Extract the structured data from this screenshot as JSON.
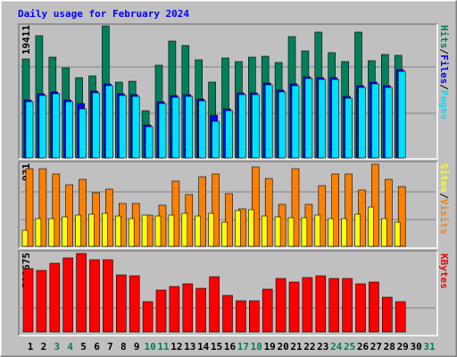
{
  "chart_data": {
    "type": "bar",
    "title": "Daily usage for February 2024",
    "separator": "/",
    "categories": [
      "1",
      "2",
      "3",
      "4",
      "5",
      "6",
      "7",
      "8",
      "9",
      "10",
      "11",
      "12",
      "13",
      "14",
      "15",
      "16",
      "17",
      "18",
      "19",
      "20",
      "21",
      "22",
      "23",
      "24",
      "25",
      "26",
      "27",
      "28",
      "29",
      "30",
      "31"
    ],
    "category_colors": [
      "#000000",
      "#000000",
      "#00805c",
      "#00805c",
      "#000000",
      "#000000",
      "#000000",
      "#000000",
      "#000000",
      "#00805c",
      "#00805c",
      "#000000",
      "#000000",
      "#000000",
      "#000000",
      "#000000",
      "#00805c",
      "#00805c",
      "#000000",
      "#000000",
      "#000000",
      "#000000",
      "#000000",
      "#00805c",
      "#00805c",
      "#000000",
      "#000000",
      "#000000",
      "#000000",
      "#000000",
      "#00805c"
    ],
    "panels": [
      {
        "ylim": [
          0,
          19411
        ],
        "yticks": [
          19411
        ],
        "series": [
          {
            "name": "Hits",
            "color": "#00805c",
            "values": [
              14559,
              17969,
              14821,
              13247,
              11804,
              12067,
              19411,
              11148,
              11280,
              6951,
              13640,
              17182,
              16526,
              14427,
              11148,
              14690,
              14165,
              14821,
              14952,
              14034,
              17837,
              15739,
              18493,
              15476,
              14165,
              18493,
              14296,
              15214,
              15083,
              null,
              null
            ]
          },
          {
            "name": "Files",
            "color": "#0000ff",
            "values": [
              8525,
              9443,
              9705,
              8525,
              8000,
              9836,
              10886,
              9443,
              9312,
              4852,
              8262,
              9181,
              9312,
              8656,
              6296,
              7213,
              9574,
              9574,
              11017,
              9968,
              10886,
              11935,
              11804,
              11804,
              9049,
              10623,
              11148,
              10623,
              12984,
              null,
              null
            ]
          },
          {
            "name": "Pages",
            "color": "#00e0ff",
            "values": [
              8263,
              9181,
              9443,
              8263,
              7214,
              9574,
              10624,
              9181,
              9050,
              4590,
              8000,
              8919,
              9050,
              8394,
              5377,
              6951,
              9312,
              9312,
              10755,
              9706,
              10624,
              11673,
              11542,
              11542,
              8787,
              10361,
              10886,
              10361,
              12722,
              null,
              null
            ]
          }
        ]
      },
      {
        "ylim": [
          0,
          931
        ],
        "yticks": [
          931
        ],
        "series": [
          {
            "name": "Sites",
            "color": "#ffff00",
            "values": [
              182,
              314,
              314,
              334,
              354,
              364,
              374,
              344,
              314,
              354,
              344,
              354,
              374,
              344,
              374,
              273,
              405,
              415,
              344,
              334,
              324,
              324,
              354,
              314,
              314,
              364,
              445,
              314,
              273,
              null,
              null
            ]
          },
          {
            "name": "Visits",
            "color": "#ff8000",
            "values": [
              880,
              880,
              820,
              698,
              759,
              607,
              648,
              486,
              486,
              354,
              466,
              739,
              587,
              789,
              820,
              597,
              425,
              901,
              769,
              476,
              880,
              476,
              688,
              820,
              820,
              638,
              931,
              759,
              678,
              null,
              null
            ]
          }
        ]
      },
      {
        "ylim": [
          0,
          598675
        ],
        "yticks": [
          598675
        ],
        "series": [
          {
            "name": "KBytes",
            "color": "#ff0000",
            "values": [
              483013,
              469407,
              523831,
              564649,
              598675,
              551043,
              551043,
              435392,
              428589,
              231302,
              319741,
              346953,
              367362,
              333347,
              421786,
              278923,
              238105,
              238105,
              326544,
              408180,
              380968,
              414983,
              428589,
              408180,
              408180,
              367362,
              380968,
              265317,
              231302,
              null,
              null
            ]
          }
        ]
      }
    ]
  }
}
